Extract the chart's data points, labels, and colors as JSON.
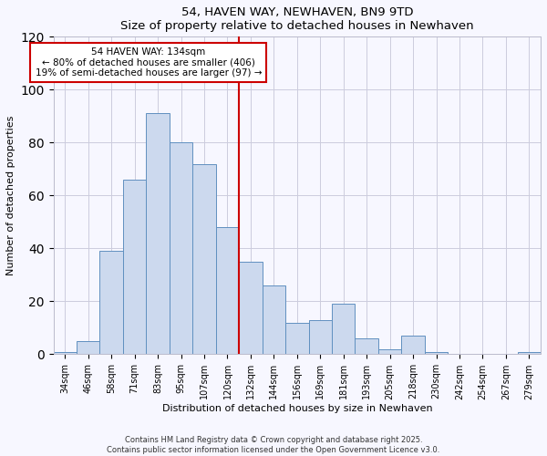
{
  "title": "54, HAVEN WAY, NEWHAVEN, BN9 9TD",
  "subtitle": "Size of property relative to detached houses in Newhaven",
  "xlabel": "Distribution of detached houses by size in Newhaven",
  "ylabel": "Number of detached properties",
  "bin_labels": [
    "34sqm",
    "46sqm",
    "58sqm",
    "71sqm",
    "83sqm",
    "95sqm",
    "107sqm",
    "120sqm",
    "132sqm",
    "144sqm",
    "156sqm",
    "169sqm",
    "181sqm",
    "193sqm",
    "205sqm",
    "218sqm",
    "230sqm",
    "242sqm",
    "254sqm",
    "267sqm",
    "279sqm"
  ],
  "bar_heights": [
    1,
    5,
    39,
    66,
    91,
    80,
    72,
    48,
    35,
    26,
    12,
    13,
    19,
    6,
    2,
    7,
    1,
    0,
    0,
    0,
    1
  ],
  "bar_color": "#ccd9ee",
  "bar_edge_color": "#6090c0",
  "vline_x": 7.5,
  "vline_color": "#cc0000",
  "annotation_title": "54 HAVEN WAY: 134sqm",
  "annotation_line1": "← 80% of detached houses are smaller (406)",
  "annotation_line2": "19% of semi-detached houses are larger (97) →",
  "annotation_box_facecolor": "#ffffff",
  "annotation_box_edgecolor": "#cc0000",
  "ylim": [
    0,
    120
  ],
  "yticks": [
    0,
    20,
    40,
    60,
    80,
    100,
    120
  ],
  "footer_line1": "Contains HM Land Registry data © Crown copyright and database right 2025.",
  "footer_line2": "Contains public sector information licensed under the Open Government Licence v3.0.",
  "bg_color": "#f7f7ff",
  "grid_color": "#ccccdd"
}
